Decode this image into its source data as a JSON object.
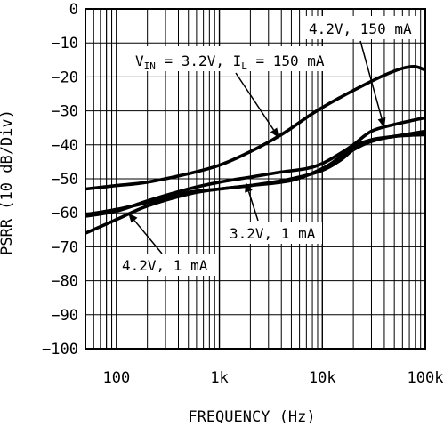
{
  "chart_data": {
    "type": "line",
    "xlabel": "FREQUENCY (Hz)",
    "ylabel": "PSRR (10 dB/Div)",
    "xscale": "log",
    "xlim": [
      50,
      100000
    ],
    "ylim": [
      -100,
      0
    ],
    "grid": true,
    "x_tick_labels": [
      {
        "value": 100,
        "label": "100"
      },
      {
        "value": 1000,
        "label": "1k"
      },
      {
        "value": 10000,
        "label": "10k"
      },
      {
        "value": 100000,
        "label": "100k"
      }
    ],
    "y_tick_labels": [
      {
        "value": 0,
        "label": "0"
      },
      {
        "value": -10,
        "label": "−10"
      },
      {
        "value": -20,
        "label": "−20"
      },
      {
        "value": -30,
        "label": "−30"
      },
      {
        "value": -40,
        "label": "−40"
      },
      {
        "value": -50,
        "label": "−50"
      },
      {
        "value": -60,
        "label": "−60"
      },
      {
        "value": -70,
        "label": "−70"
      },
      {
        "value": -80,
        "label": "−80"
      },
      {
        "value": -90,
        "label": "−90"
      },
      {
        "value": -100,
        "label": "−100"
      }
    ],
    "series": [
      {
        "name": "V_IN = 3.2V, I_L = 150 mA",
        "x": [
          50,
          100,
          200,
          500,
          1000,
          2000,
          4000,
          7000,
          10000,
          20000,
          40000,
          60000,
          80000,
          100000
        ],
        "y": [
          -53,
          -52,
          -51,
          -48.5,
          -46,
          -42,
          -37,
          -32,
          -29,
          -24,
          -19.5,
          -17.5,
          -17,
          -18
        ]
      },
      {
        "name": "4.2V, 150 mA",
        "x": [
          50,
          100,
          200,
          500,
          1000,
          2000,
          4000,
          7000,
          10000,
          15000,
          20000,
          30000,
          50000,
          100000
        ],
        "y": [
          -61,
          -59.5,
          -56.5,
          -53,
          -51,
          -49.5,
          -48,
          -47,
          -45.5,
          -42.5,
          -40,
          -36,
          -34,
          -32
        ]
      },
      {
        "name": "3.2V, 1 mA",
        "x": [
          50,
          100,
          200,
          500,
          1000,
          2000,
          5000,
          10000,
          15000,
          20000,
          30000,
          50000,
          100000
        ],
        "y": [
          -60.5,
          -59,
          -57,
          -54,
          -53,
          -52,
          -50.5,
          -47,
          -43.5,
          -40.5,
          -38.5,
          -37.5,
          -36
        ]
      },
      {
        "name": "4.2V, 1 mA",
        "x": [
          50,
          100,
          200,
          500,
          1000,
          2000,
          5000,
          10000,
          15000,
          20000,
          30000,
          50000,
          100000
        ],
        "y": [
          -66,
          -62,
          -58,
          -54.5,
          -53,
          -52,
          -50,
          -47.5,
          -44.5,
          -41.5,
          -39,
          -37.5,
          -37
        ]
      }
    ],
    "annotations": [
      {
        "id": "vin",
        "text_parts": [
          "V",
          "IN",
          " = 3.2V, I",
          "L",
          " = 150 mA"
        ],
        "target_x": 3800,
        "target_y": -38
      },
      {
        "id": "s150",
        "text": "4.2V, 150 mA",
        "target_x": 40000,
        "target_y": -35
      },
      {
        "id": "s1ma32",
        "text": "3.2V, 1 mA",
        "target_x": 1800,
        "target_y": -51
      },
      {
        "id": "s1ma42",
        "text": "4.2V, 1 mA",
        "target_x": 130,
        "target_y": -60
      }
    ]
  }
}
